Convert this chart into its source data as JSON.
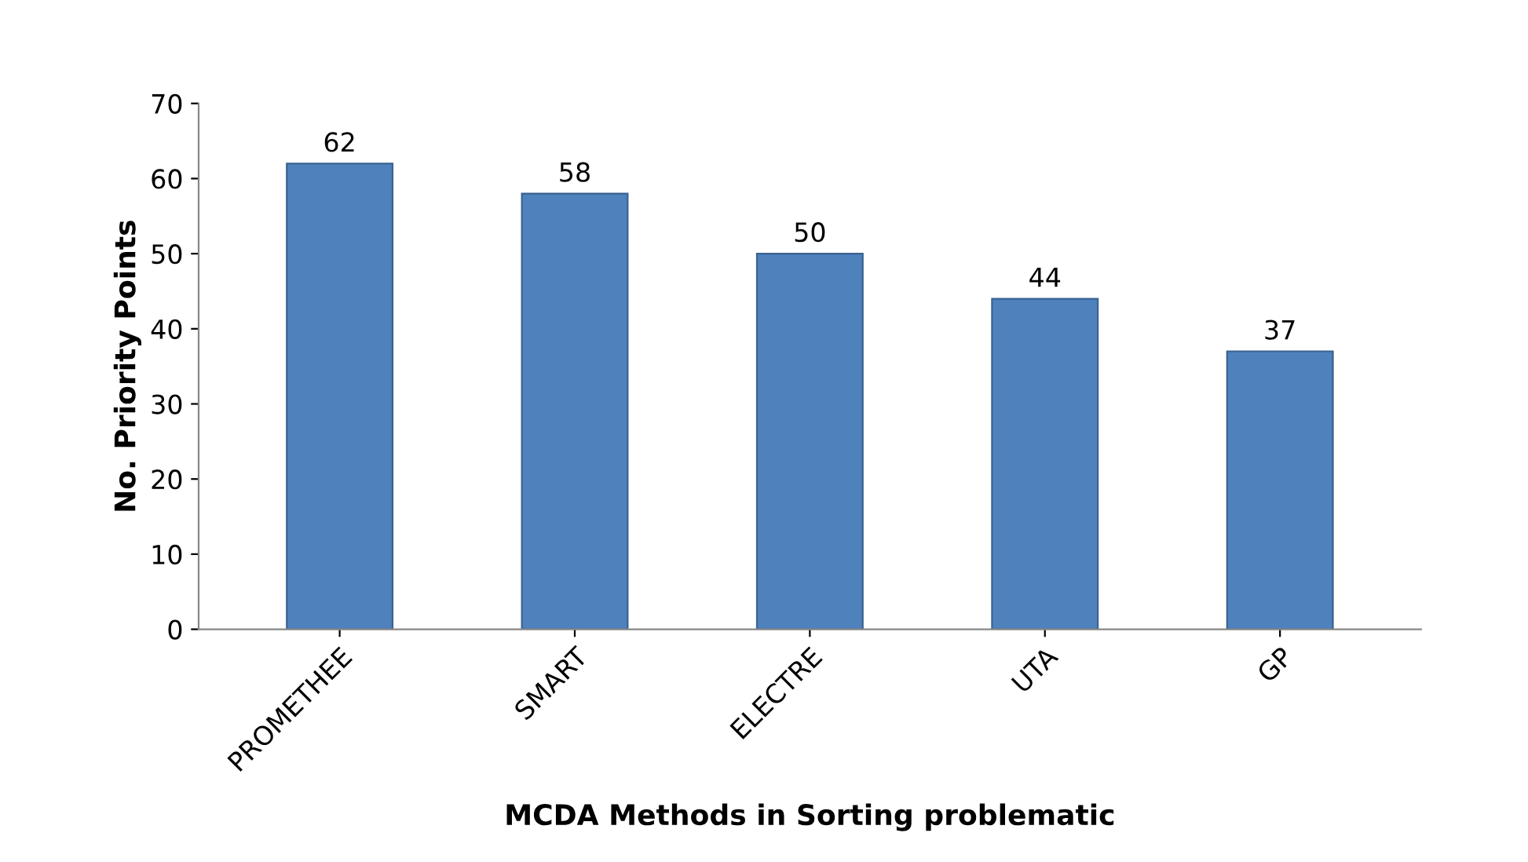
{
  "chart_data": {
    "type": "bar",
    "xlabel": "MCDA Methods in Sorting problematic",
    "ylabel": "No. Priority Points",
    "categories": [
      "PROMETHEE",
      "SMART",
      "ELECTRE",
      "UTA",
      "GP"
    ],
    "values": [
      62,
      58,
      50,
      44,
      37
    ],
    "color": "#4f81bd",
    "ylim": [
      0,
      70
    ],
    "yticks": [
      0,
      10,
      20,
      30,
      40,
      50,
      60,
      70
    ],
    "grid": false,
    "legend": false,
    "data_labels": true
  }
}
